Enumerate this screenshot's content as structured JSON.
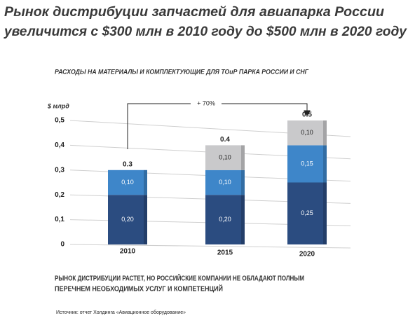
{
  "chart_data": {
    "type": "bar",
    "stacked": true,
    "title": [
      "Рынок дистрибуции запчастей для авиапарка России",
      "увеличится с $300 млн в 2010 году до $500 млн в 2020 году"
    ],
    "subtitle": "РАСХОДЫ НА МАТЕРИАЛЫ И КОМПЛЕКТУЮЩИЕ ДЛЯ ТОиР ПАРКА РОССИИ И СНГ",
    "ylabel": "$ млрд",
    "categories": [
      "2010",
      "2015",
      "2020"
    ],
    "series": [
      {
        "color": "#2b4c80",
        "values": [
          0.2,
          0.2,
          0.25
        ],
        "value_labels": [
          "0,20",
          "0,20",
          "0,25"
        ]
      },
      {
        "color": "#3e86c9",
        "values": [
          0.1,
          0.1,
          0.15
        ],
        "value_labels": [
          "0,10",
          "0,10",
          "0,15"
        ]
      },
      {
        "color": "#c9c9cb",
        "values": [
          null,
          0.1,
          0.1
        ],
        "value_labels": [
          null,
          "0,10",
          "0,10"
        ]
      }
    ],
    "totals": [
      0.3,
      0.4,
      0.5
    ],
    "annotation": "+ 70%",
    "ylim": [
      0,
      0.5
    ],
    "yticks": [
      0,
      {
        "value": 0.1,
        "label": "0,1"
      },
      {
        "value": 0.2,
        "label": "0,2"
      },
      {
        "value": 0.3,
        "label": "0,3"
      },
      {
        "value": 0.4,
        "label": "0,4"
      },
      {
        "value": 0.5,
        "label": "0,5"
      }
    ],
    "grid": true,
    "note": [
      "РЫНОК  ДИСТРИБУЦИИ РАСТЕТ, НО РОССИЙСКИЕ КОМПАНИИ НЕ ОБЛАДАЮТ ПОЛНЫМ",
      "ПЕРЕЧНЕМ НЕОБХОДИМЫХ УСЛУГ И КОМПЕТЕНЦИЙ"
    ],
    "source": "Источник: отчет Холдинга «Авиационное оборудование»"
  }
}
